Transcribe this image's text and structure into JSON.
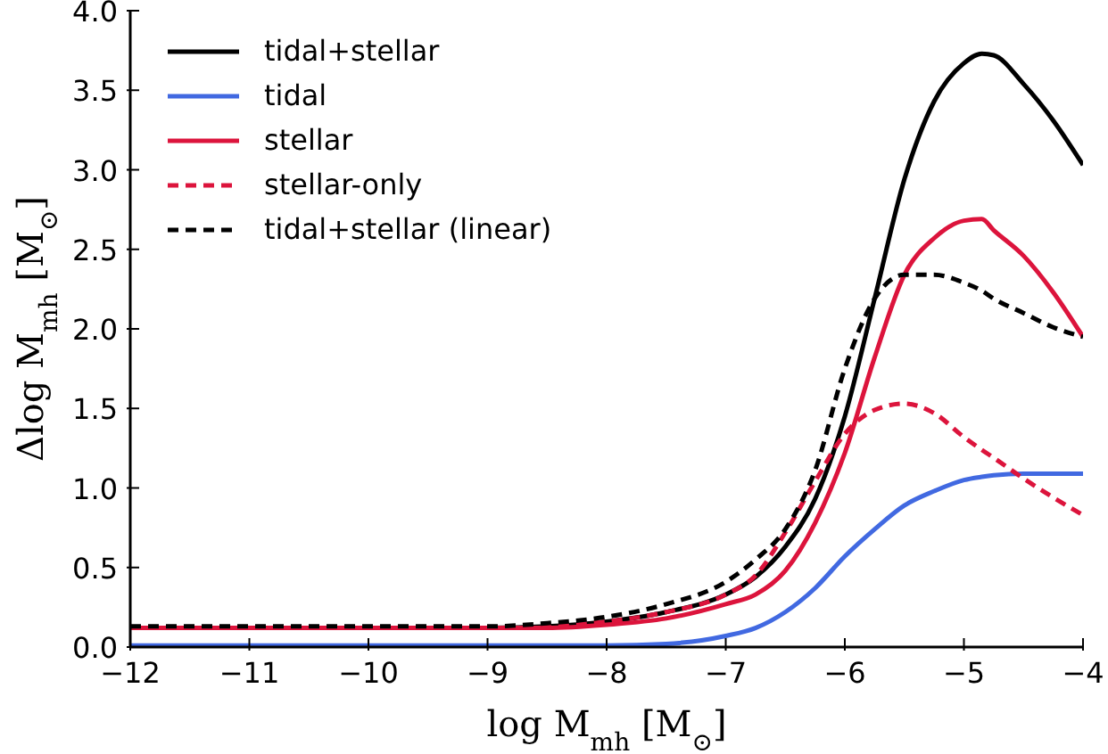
{
  "chart_data": {
    "type": "line",
    "xlabel": "log M$_{mh}$ [M$_{⊙}$]",
    "ylabel": "Δlog M$_{mh}$ [M$_{⊙}$]",
    "x": [
      -12,
      -11,
      -10,
      -9,
      -8.5,
      -8,
      -7.5,
      -7,
      -6.75,
      -6.5,
      -6.25,
      -6,
      -5.75,
      -5.5,
      -5.25,
      -5,
      -4.85,
      -4.75,
      -4.5,
      -4.25,
      -4
    ],
    "series": [
      {
        "name": "tidal+stellar",
        "color": "#000000",
        "line_style": "solid",
        "values": [
          0.12,
          0.12,
          0.12,
          0.12,
          0.13,
          0.16,
          0.22,
          0.33,
          0.44,
          0.63,
          0.93,
          1.45,
          2.19,
          2.94,
          3.43,
          3.67,
          3.73,
          3.72,
          3.54,
          3.31,
          3.03
        ]
      },
      {
        "name": "tidal",
        "color": "#4169e1",
        "line_style": "solid",
        "values": [
          0.01,
          0.01,
          0.01,
          0.01,
          0.01,
          0.01,
          0.02,
          0.07,
          0.12,
          0.22,
          0.37,
          0.57,
          0.74,
          0.89,
          0.98,
          1.05,
          1.07,
          1.08,
          1.09,
          1.09,
          1.09
        ]
      },
      {
        "name": "stellar",
        "color": "#dc143c",
        "line_style": "solid",
        "values": [
          0.12,
          0.12,
          0.12,
          0.12,
          0.12,
          0.14,
          0.18,
          0.27,
          0.33,
          0.48,
          0.78,
          1.22,
          1.82,
          2.34,
          2.57,
          2.68,
          2.69,
          2.62,
          2.46,
          2.23,
          1.95
        ]
      },
      {
        "name": "stellar-only",
        "color": "#dc143c",
        "line_style": "dashed",
        "values": [
          0.12,
          0.12,
          0.12,
          0.12,
          0.13,
          0.16,
          0.22,
          0.33,
          0.45,
          0.72,
          1.04,
          1.34,
          1.49,
          1.53,
          1.47,
          1.32,
          1.24,
          1.19,
          1.06,
          0.94,
          0.83
        ]
      },
      {
        "name": "tidal+stellar (linear)",
        "color": "#000000",
        "line_style": "dashed",
        "values": [
          0.13,
          0.13,
          0.13,
          0.13,
          0.15,
          0.19,
          0.27,
          0.41,
          0.55,
          0.74,
          1.11,
          1.75,
          2.19,
          2.34,
          2.34,
          2.29,
          2.24,
          2.19,
          2.1,
          2.01,
          1.95
        ]
      }
    ],
    "xlim": [
      -12,
      -4
    ],
    "xticks": [
      -12,
      -11,
      -10,
      -9,
      -8,
      -7,
      -6,
      -5,
      -4
    ],
    "ylim": [
      0,
      4
    ],
    "yticks": [
      {
        "value": 0,
        "label": "0.0"
      },
      {
        "value": 0.5,
        "label": "0.5"
      },
      {
        "value": 1,
        "label": "1.0"
      },
      {
        "value": 1.5,
        "label": "1.5"
      },
      {
        "value": 2,
        "label": "2.0"
      },
      {
        "value": 2.5,
        "label": "2.5"
      },
      {
        "value": 3,
        "label": "3.0"
      },
      {
        "value": 3.5,
        "label": "3.5"
      },
      {
        "value": 4,
        "label": "4.0"
      }
    ],
    "grid": false,
    "legend": "top left",
    "marker": "none"
  }
}
